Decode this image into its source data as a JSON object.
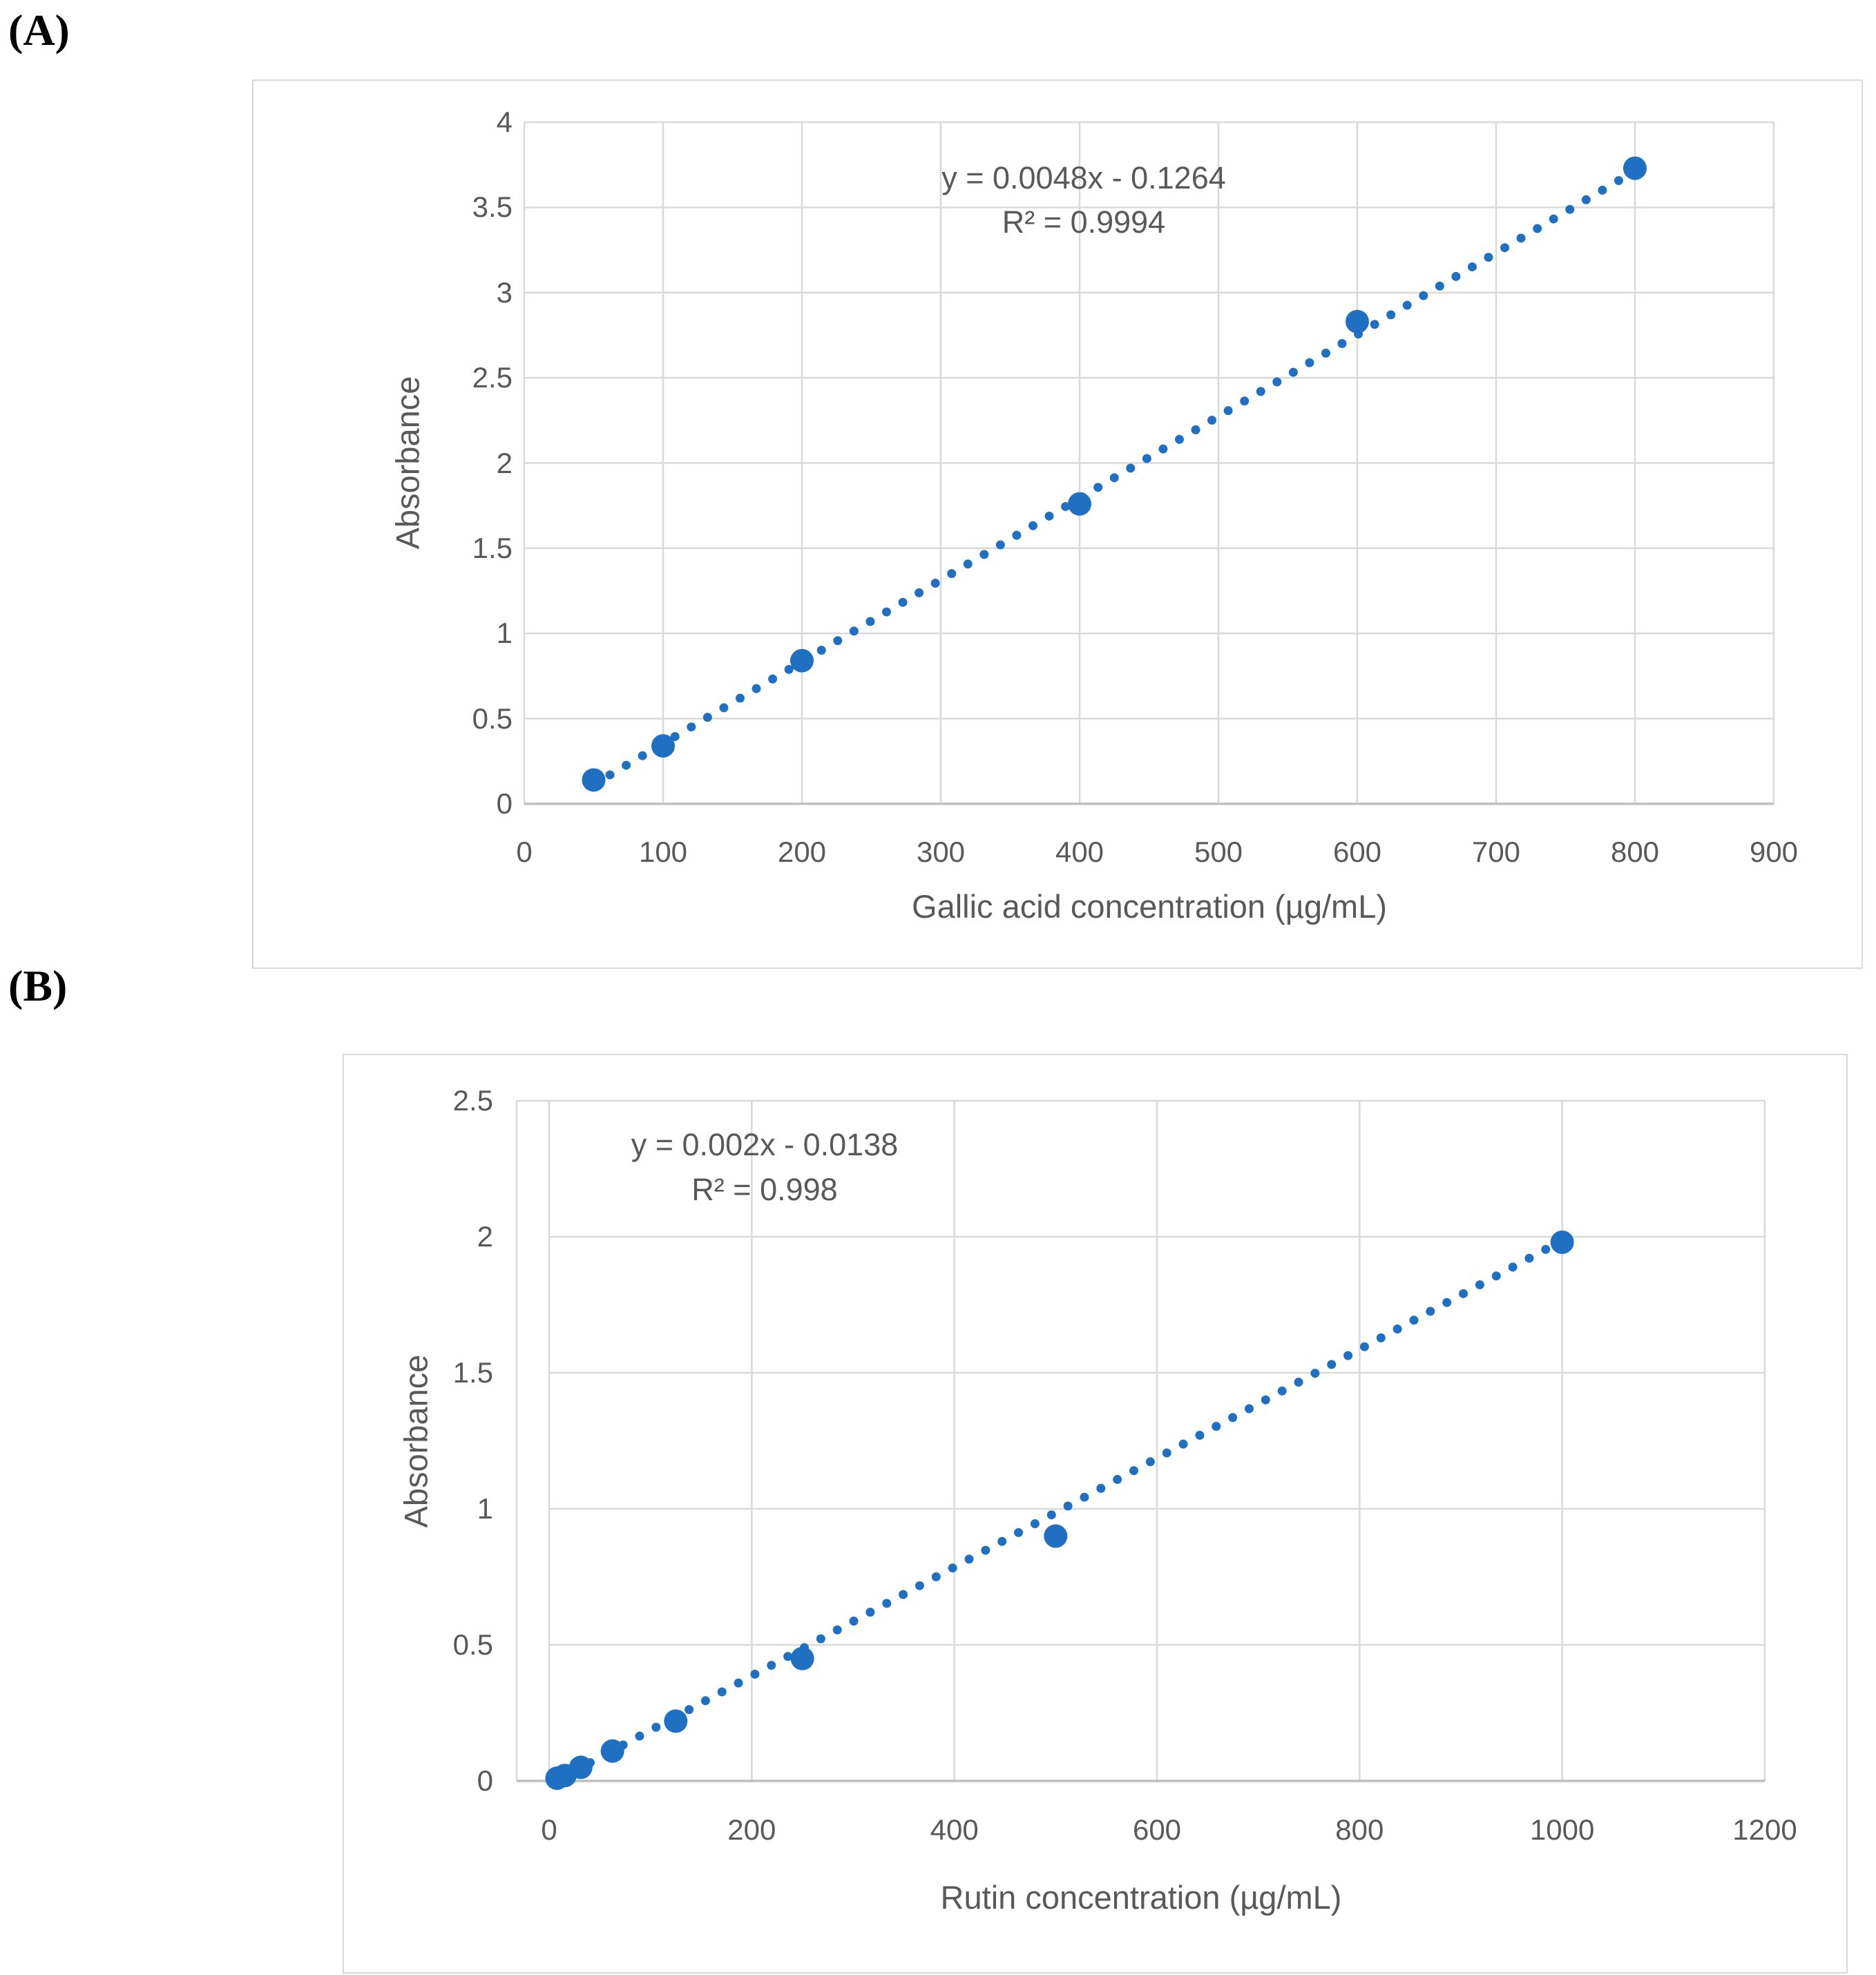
{
  "page": {
    "background": "#ffffff"
  },
  "panels": [
    {
      "label": "(A)"
    },
    {
      "label": "(B)"
    }
  ],
  "colors": {
    "marker_blue": "#1f6fc2",
    "gridline": "#d9d9d9",
    "axis_line": "#bfbfbf",
    "text_gray": "#595959",
    "chart_border": "#d9d9d9"
  },
  "chart_data": [
    {
      "id": "A",
      "type": "scatter",
      "title": "",
      "xlabel": "Gallic acid concentration (µg/mL)",
      "ylabel": "Absorbance",
      "equation": "y = 0.0048x - 0.1264",
      "r_squared": "R² = 0.9994",
      "xlim": [
        0,
        900
      ],
      "ylim": [
        0,
        4
      ],
      "x_ticks": [
        0,
        100,
        200,
        300,
        400,
        500,
        600,
        700,
        800,
        900
      ],
      "y_ticks": [
        0,
        0.5,
        1,
        1.5,
        2,
        2.5,
        3,
        3.5,
        4
      ],
      "grid": true,
      "legend": "none",
      "points": [
        {
          "x": 50,
          "y": 0.14
        },
        {
          "x": 100,
          "y": 0.34
        },
        {
          "x": 200,
          "y": 0.84
        },
        {
          "x": 400,
          "y": 1.76
        },
        {
          "x": 600,
          "y": 2.83
        },
        {
          "x": 800,
          "y": 3.73
        }
      ],
      "trendline": {
        "style": "dotted",
        "slope": 0.0048,
        "intercept": -0.1264,
        "x_start": 50,
        "x_end": 800
      }
    },
    {
      "id": "B",
      "type": "scatter",
      "title": "",
      "xlabel": "Rutin concentration (µg/mL)",
      "ylabel": "Absorbance",
      "equation": "y = 0.002x - 0.0138",
      "r_squared": "R² = 0.998",
      "xlim": [
        0,
        1200
      ],
      "ylim": [
        0,
        2.5
      ],
      "x_ticks": [
        0,
        200,
        400,
        600,
        800,
        1000,
        1200
      ],
      "y_ticks": [
        0,
        0.5,
        1,
        1.5,
        2,
        2.5
      ],
      "grid": true,
      "legend": "none",
      "points": [
        {
          "x": 7.8,
          "y": 0.01
        },
        {
          "x": 15.6,
          "y": 0.02
        },
        {
          "x": 31.25,
          "y": 0.05
        },
        {
          "x": 62.5,
          "y": 0.11
        },
        {
          "x": 125,
          "y": 0.22
        },
        {
          "x": 250,
          "y": 0.45
        },
        {
          "x": 500,
          "y": 0.9
        },
        {
          "x": 1000,
          "y": 1.98
        }
      ],
      "trendline": {
        "style": "dotted",
        "slope": 0.002,
        "intercept": -0.0138,
        "x_start": 8,
        "x_end": 1000
      }
    }
  ]
}
